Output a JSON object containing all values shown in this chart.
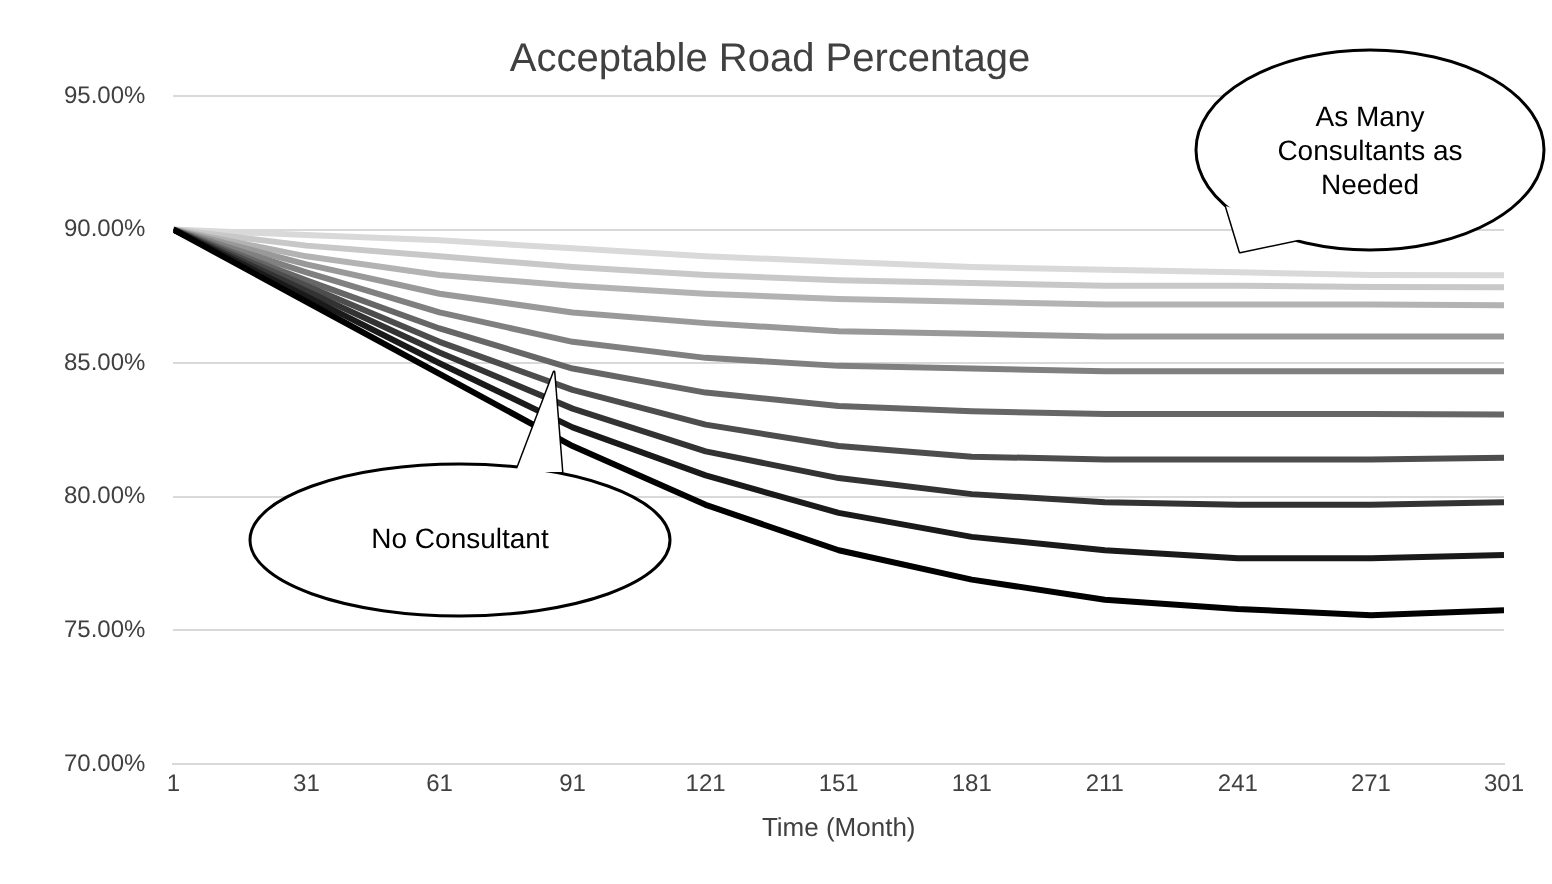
{
  "chart_data": {
    "type": "line",
    "title": "Acceptable Road Percentage",
    "xlabel": "Time (Month)",
    "x": [
      1,
      31,
      61,
      91,
      121,
      151,
      181,
      211,
      241,
      271,
      301
    ],
    "xlim": [
      1,
      301
    ],
    "xticks": [
      1,
      31,
      61,
      91,
      121,
      151,
      181,
      211,
      241,
      271,
      301
    ],
    "ylim": [
      70,
      95
    ],
    "yticks": [
      {
        "value": 70,
        "label": "70.00%"
      },
      {
        "value": 75,
        "label": "75.00%"
      },
      {
        "value": 80,
        "label": "80.00%"
      },
      {
        "value": 85,
        "label": "85.00%"
      },
      {
        "value": 90,
        "label": "90.00%"
      },
      {
        "value": 95,
        "label": "95.00%"
      }
    ],
    "grid": "y",
    "legend": false,
    "marker": "none",
    "line_style": "solid",
    "annotations": [
      "No Consultant",
      "As Many Consultants as Needed"
    ],
    "series": [
      {
        "color": "#000000",
        "values": [
          90,
          87.3,
          84.6,
          81.9,
          79.7,
          78.0,
          76.9,
          76.15,
          75.8,
          75.57,
          75.75
        ]
      },
      {
        "color": "#1a1a1a",
        "values": [
          90,
          87.5,
          85.0,
          82.6,
          80.8,
          79.4,
          78.5,
          78.0,
          77.7,
          77.7,
          77.82
        ]
      },
      {
        "color": "#333333",
        "values": [
          90,
          87.7,
          85.4,
          83.3,
          81.7,
          80.7,
          80.1,
          79.8,
          79.7,
          79.7,
          79.8
        ]
      },
      {
        "color": "#4d4d4d",
        "values": [
          90,
          87.9,
          85.8,
          84.0,
          82.7,
          81.9,
          81.5,
          81.4,
          81.4,
          81.4,
          81.46
        ]
      },
      {
        "color": "#666666",
        "values": [
          90,
          88.1,
          86.3,
          84.8,
          83.9,
          83.4,
          83.2,
          83.1,
          83.1,
          83.1,
          83.08
        ]
      },
      {
        "color": "#808080",
        "values": [
          90,
          88.4,
          86.9,
          85.8,
          85.2,
          84.9,
          84.8,
          84.7,
          84.7,
          84.7,
          84.7
        ]
      },
      {
        "color": "#999999",
        "values": [
          90,
          88.7,
          87.6,
          86.9,
          86.5,
          86.2,
          86.1,
          86.0,
          86.0,
          86.0,
          86.0
        ]
      },
      {
        "color": "#b3b3b3",
        "values": [
          90,
          89.0,
          88.3,
          87.9,
          87.6,
          87.4,
          87.3,
          87.2,
          87.2,
          87.2,
          87.17
        ]
      },
      {
        "color": "#c8c8c8",
        "values": [
          90,
          89.4,
          89.0,
          88.6,
          88.3,
          88.1,
          88.0,
          87.9,
          87.9,
          87.85,
          87.84
        ]
      },
      {
        "color": "#d9d9d9",
        "values": [
          90,
          89.8,
          89.6,
          89.3,
          89.0,
          88.8,
          88.6,
          88.5,
          88.4,
          88.3,
          88.29
        ]
      }
    ]
  }
}
